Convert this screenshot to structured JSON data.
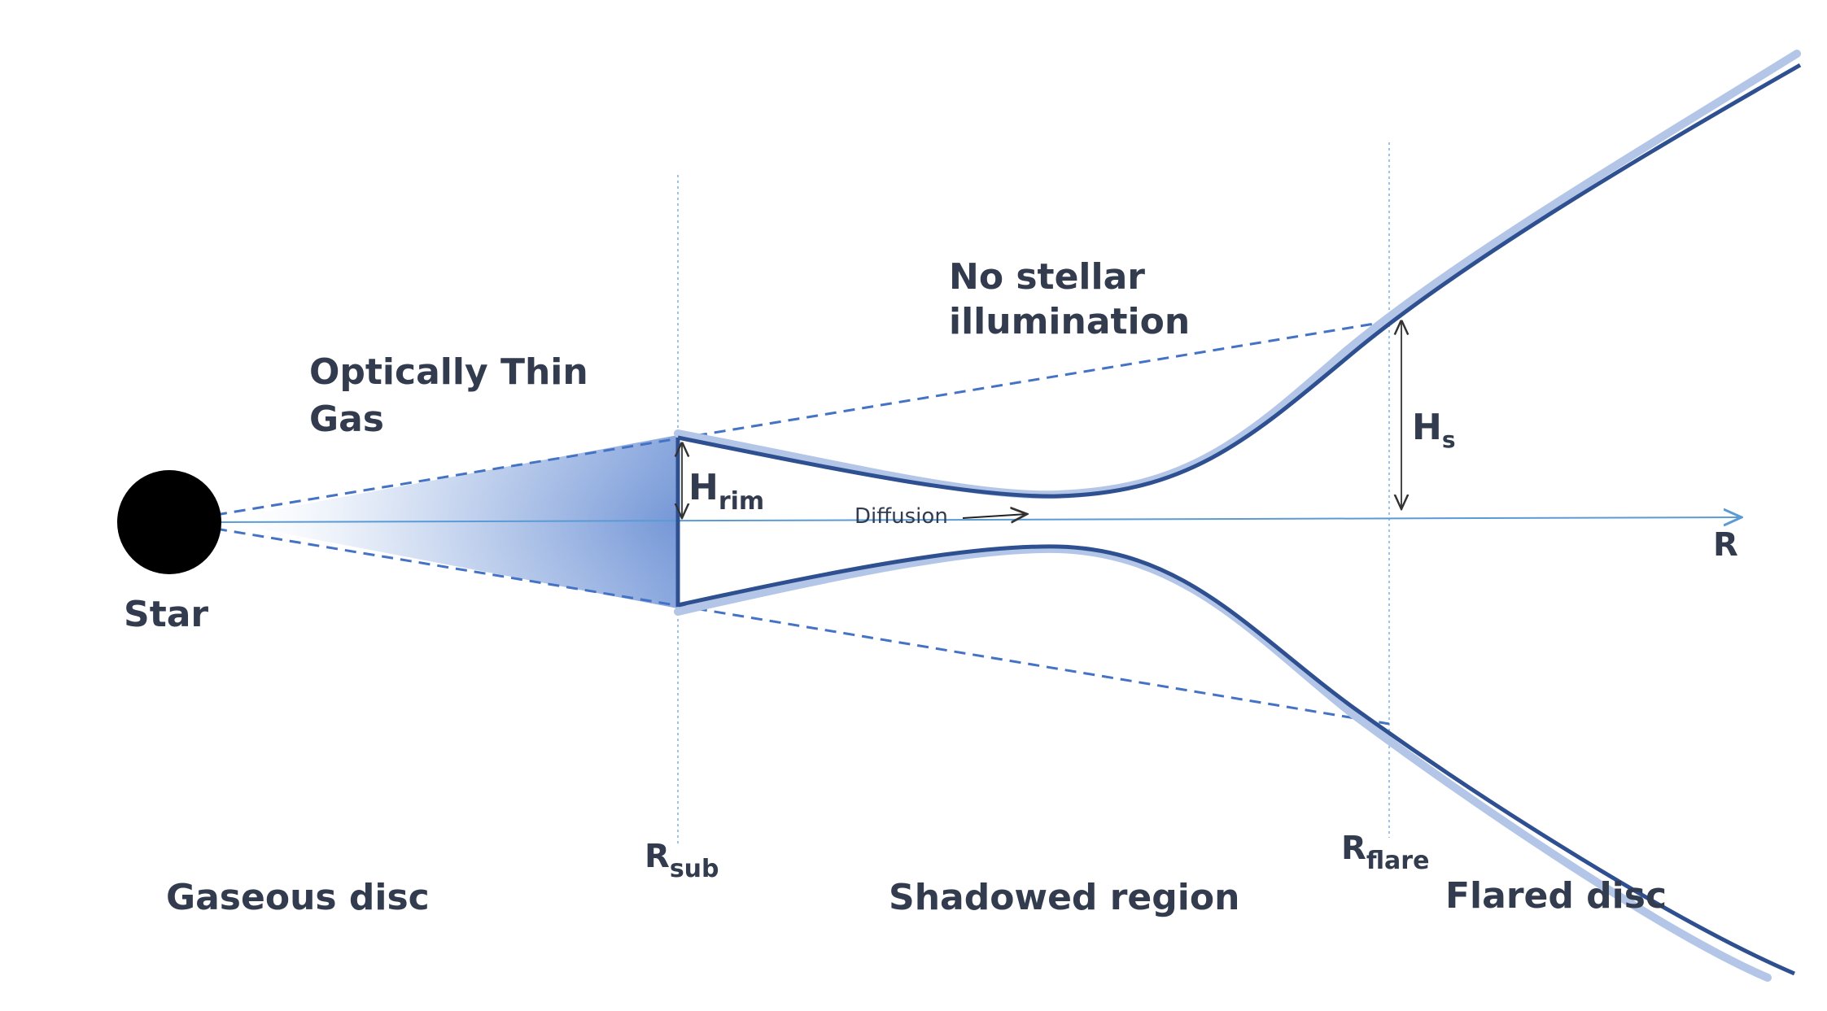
{
  "labels": {
    "star": "Star",
    "optically_thin_line1": "Optically Thin",
    "optically_thin_line2": "Gas",
    "no_stellar_line1": "No stellar",
    "no_stellar_line2": "illumination",
    "h_rim_base": "H",
    "h_rim_sub": "rim",
    "h_s_base": "H",
    "h_s_sub": "s",
    "diffusion": "Diffusion",
    "r_axis": "R",
    "r_sub_base": "R",
    "r_sub_sub": "sub",
    "r_flare_base": "R",
    "r_flare_sub": "flare",
    "gaseous_disc": "Gaseous disc",
    "shadowed_region": "Shadowed region",
    "flared_disc": "Flared disc"
  },
  "colors": {
    "text": "#333c4e",
    "disc_surface_dark": "#2e5090",
    "disc_surface_light": "#b4c6e7",
    "dashed_lines": "#4472c4",
    "axis": "#5b9bd5",
    "guide_lines": "#9dc3e6",
    "star": "#000000"
  }
}
